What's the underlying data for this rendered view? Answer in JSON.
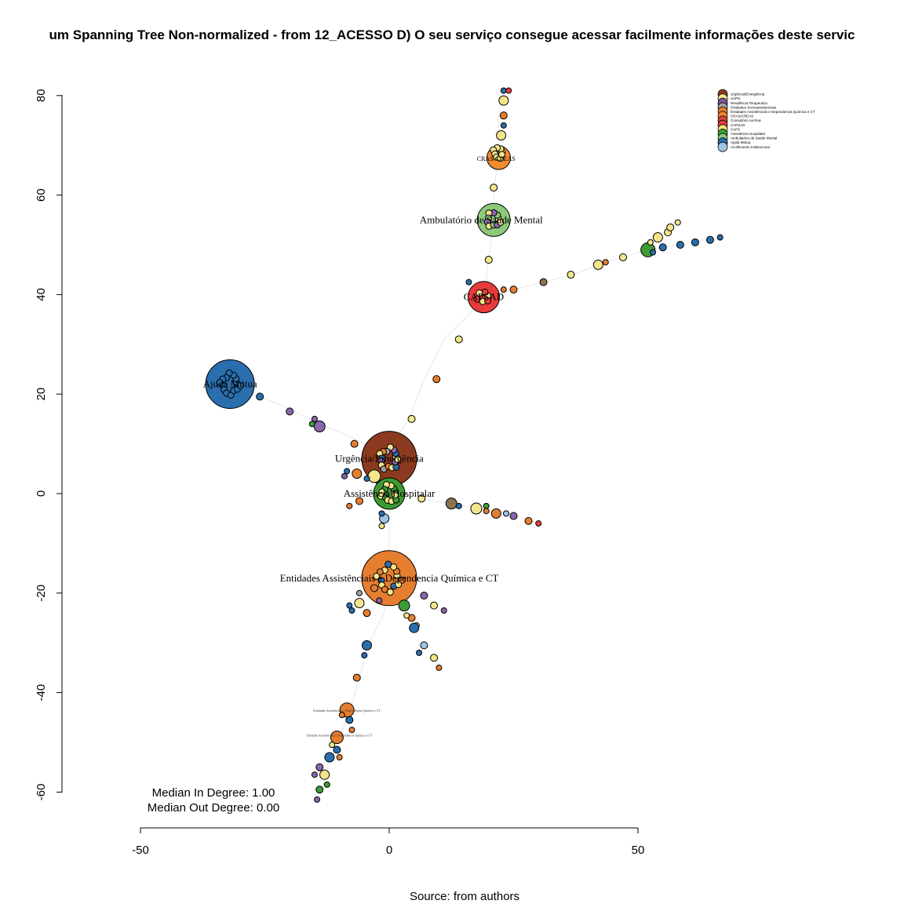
{
  "title": "um Spanning Tree Non-normalized - from 12_ACESSO D) O seu serviço consegue acessar facilmente informações deste servic",
  "source": "Source: from authors",
  "stats": {
    "in_degree": "Median In Degree: 1.00",
    "out_degree": "Median Out Degree: 0.00"
  },
  "axes": {
    "x_ticks": [
      "-50",
      "0",
      "50"
    ],
    "y_ticks": [
      "80",
      "60",
      "40",
      "20",
      "0",
      "-20",
      "-40",
      "-60"
    ]
  },
  "legend": [
    {
      "label": "Urgência/Emergência",
      "color": "#8b3a1f"
    },
    {
      "label": "UAPS",
      "color": "#f3e58a"
    },
    {
      "label": "Residência Terapeutica",
      "color": "#7b5aa6"
    },
    {
      "label": "Entidades Socioassistenciais",
      "color": "#a0a0a0"
    },
    {
      "label": "Entidades Assistênciais e Dependencia Química e CT",
      "color": "#e67e30"
    },
    {
      "label": "CRAS/CREAS",
      "color": "#f28a2e"
    },
    {
      "label": "Consultório na Rua",
      "color": "#d9423a"
    },
    {
      "label": "CAPSAD",
      "color": "#e83c3c"
    },
    {
      "label": "CAPS",
      "color": "#f5e27a"
    },
    {
      "label": "Assistência Hospitalar",
      "color": "#3d9b35"
    },
    {
      "label": "Ambulatório de Saúde Mental",
      "color": "#8cc97a"
    },
    {
      "label": "Ajuda Mútua",
      "color": "#2a6ead"
    },
    {
      "label": "Acolhimento Institucional",
      "color": "#9ec5e3"
    }
  ],
  "hubs": [
    {
      "label": "Urgência/Emergência",
      "x": 0,
      "y": 7,
      "r": 35,
      "color": "#8b3a1f"
    },
    {
      "label": "Entidades Assistênciais e Dependencia Química e CT",
      "x": 0,
      "y": -17,
      "r": 35,
      "color": "#e67e30"
    },
    {
      "label": "Ajuda Mútua",
      "x": -32,
      "y": 22,
      "r": 31,
      "color": "#2a6ead"
    },
    {
      "label": "Assistência Hospitalar",
      "x": 0,
      "y": 0,
      "r": 20,
      "color": "#3d9b35"
    },
    {
      "label": "Ambulatório de Saúde Mental",
      "x": 21,
      "y": 55,
      "r": 21,
      "color": "#8cc97a"
    },
    {
      "label": "CAPSAD",
      "x": 19,
      "y": 39.5,
      "r": 20,
      "color": "#e83c3c"
    },
    {
      "label": "CRAS/CREAS",
      "x": 22,
      "y": 67.5,
      "r": 15,
      "color": "#f28a2e"
    }
  ],
  "mid_labels": [
    {
      "label": "Entidades Assistênciais e Dependencia Química e CT",
      "x": -8.5,
      "y": -43.5
    },
    {
      "label": "Entidade Assistênciais e Dependencia Química e CT",
      "x": -10,
      "y": -48.5
    }
  ]
}
